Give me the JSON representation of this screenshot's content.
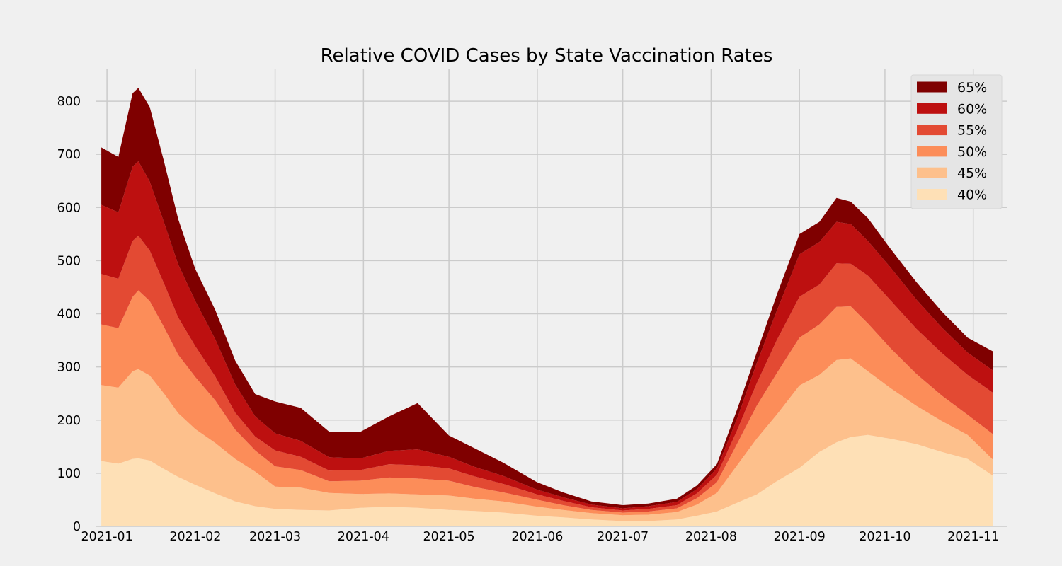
{
  "chart_data": {
    "type": "area",
    "stacked": true,
    "title": "Relative COVID Cases by State Vaccination Rates",
    "xlabel": "",
    "ylabel": "",
    "grid": true,
    "legend_position": "top-right",
    "x_range": [
      "2020-12-28",
      "2021-11-13"
    ],
    "ylim": [
      0,
      860
    ],
    "yticks": [
      0,
      100,
      200,
      300,
      400,
      500,
      600,
      700,
      800
    ],
    "xticks": [
      "2021-01",
      "2021-02",
      "2021-03",
      "2021-04",
      "2021-05",
      "2021-06",
      "2021-07",
      "2021-08",
      "2021-09",
      "2021-10",
      "2021-11"
    ],
    "xtick_dates": [
      "2021-01-01",
      "2021-02-01",
      "2021-03-01",
      "2021-04-01",
      "2021-05-01",
      "2021-06-01",
      "2021-07-01",
      "2021-08-01",
      "2021-09-01",
      "2021-10-01",
      "2021-11-01"
    ],
    "x": [
      "2020-12-30",
      "2021-01-05",
      "2021-01-10",
      "2021-01-12",
      "2021-01-16",
      "2021-01-21",
      "2021-01-26",
      "2021-02-01",
      "2021-02-08",
      "2021-02-15",
      "2021-02-22",
      "2021-03-01",
      "2021-03-10",
      "2021-03-20",
      "2021-03-31",
      "2021-04-10",
      "2021-04-20",
      "2021-05-01",
      "2021-05-10",
      "2021-05-20",
      "2021-06-01",
      "2021-06-10",
      "2021-06-20",
      "2021-07-01",
      "2021-07-10",
      "2021-07-20",
      "2021-07-27",
      "2021-08-03",
      "2021-08-10",
      "2021-08-17",
      "2021-08-24",
      "2021-09-01",
      "2021-09-08",
      "2021-09-14",
      "2021-09-19",
      "2021-09-25",
      "2021-10-03",
      "2021-10-12",
      "2021-10-21",
      "2021-10-30",
      "2021-11-08"
    ],
    "series": [
      {
        "name": "40%",
        "color": "#fee0b6",
        "values": [
          123,
          118,
          127,
          128,
          124,
          108,
          93,
          78,
          62,
          47,
          38,
          33,
          31,
          30,
          35,
          37,
          35,
          31,
          29,
          26,
          20,
          17,
          13,
          10,
          10,
          13,
          20,
          28,
          44,
          60,
          85,
          110,
          140,
          158,
          168,
          172,
          165,
          155,
          140,
          127,
          95
        ]
      },
      {
        "name": "45%",
        "color": "#fdc08c",
        "values": [
          143,
          143,
          165,
          168,
          160,
          142,
          120,
          105,
          95,
          80,
          65,
          42,
          42,
          33,
          26,
          25,
          25,
          27,
          23,
          21,
          17,
          14,
          12,
          11,
          12,
          14,
          21,
          35,
          70,
          105,
          125,
          155,
          145,
          155,
          148,
          120,
          95,
          72,
          58,
          45,
          30
        ]
      },
      {
        "name": "50%",
        "color": "#fc8d59",
        "values": [
          114,
          112,
          140,
          148,
          140,
          125,
          110,
          98,
          80,
          55,
          40,
          38,
          33,
          22,
          25,
          30,
          30,
          28,
          22,
          17,
          13,
          9,
          6,
          5,
          6,
          7,
          12,
          20,
          40,
          62,
          78,
          90,
          95,
          100,
          98,
          90,
          75,
          60,
          48,
          38,
          48
        ]
      },
      {
        "name": "55%",
        "color": "#e34a33",
        "values": [
          95,
          93,
          105,
          103,
          95,
          82,
          70,
          58,
          45,
          32,
          26,
          30,
          25,
          20,
          20,
          25,
          25,
          23,
          20,
          16,
          10,
          8,
          5,
          4,
          5,
          6,
          9,
          14,
          25,
          42,
          62,
          77,
          75,
          82,
          80,
          90,
          90,
          85,
          80,
          75,
          78
        ]
      },
      {
        "name": "60%",
        "color": "#bd1010",
        "values": [
          130,
          125,
          140,
          140,
          130,
          115,
          100,
          85,
          70,
          53,
          38,
          32,
          30,
          25,
          22,
          25,
          30,
          22,
          18,
          15,
          9,
          7,
          5,
          4,
          5,
          6,
          8,
          12,
          22,
          38,
          55,
          80,
          80,
          78,
          75,
          65,
          62,
          55,
          48,
          42,
          42
        ]
      },
      {
        "name": "65%",
        "color": "#7f0000",
        "values": [
          108,
          104,
          138,
          138,
          140,
          115,
          85,
          60,
          55,
          45,
          42,
          60,
          62,
          48,
          50,
          65,
          87,
          40,
          35,
          25,
          14,
          9,
          6,
          6,
          5,
          6,
          7,
          8,
          17,
          20,
          30,
          38,
          38,
          45,
          42,
          43,
          35,
          33,
          30,
          28,
          36
        ]
      }
    ]
  }
}
